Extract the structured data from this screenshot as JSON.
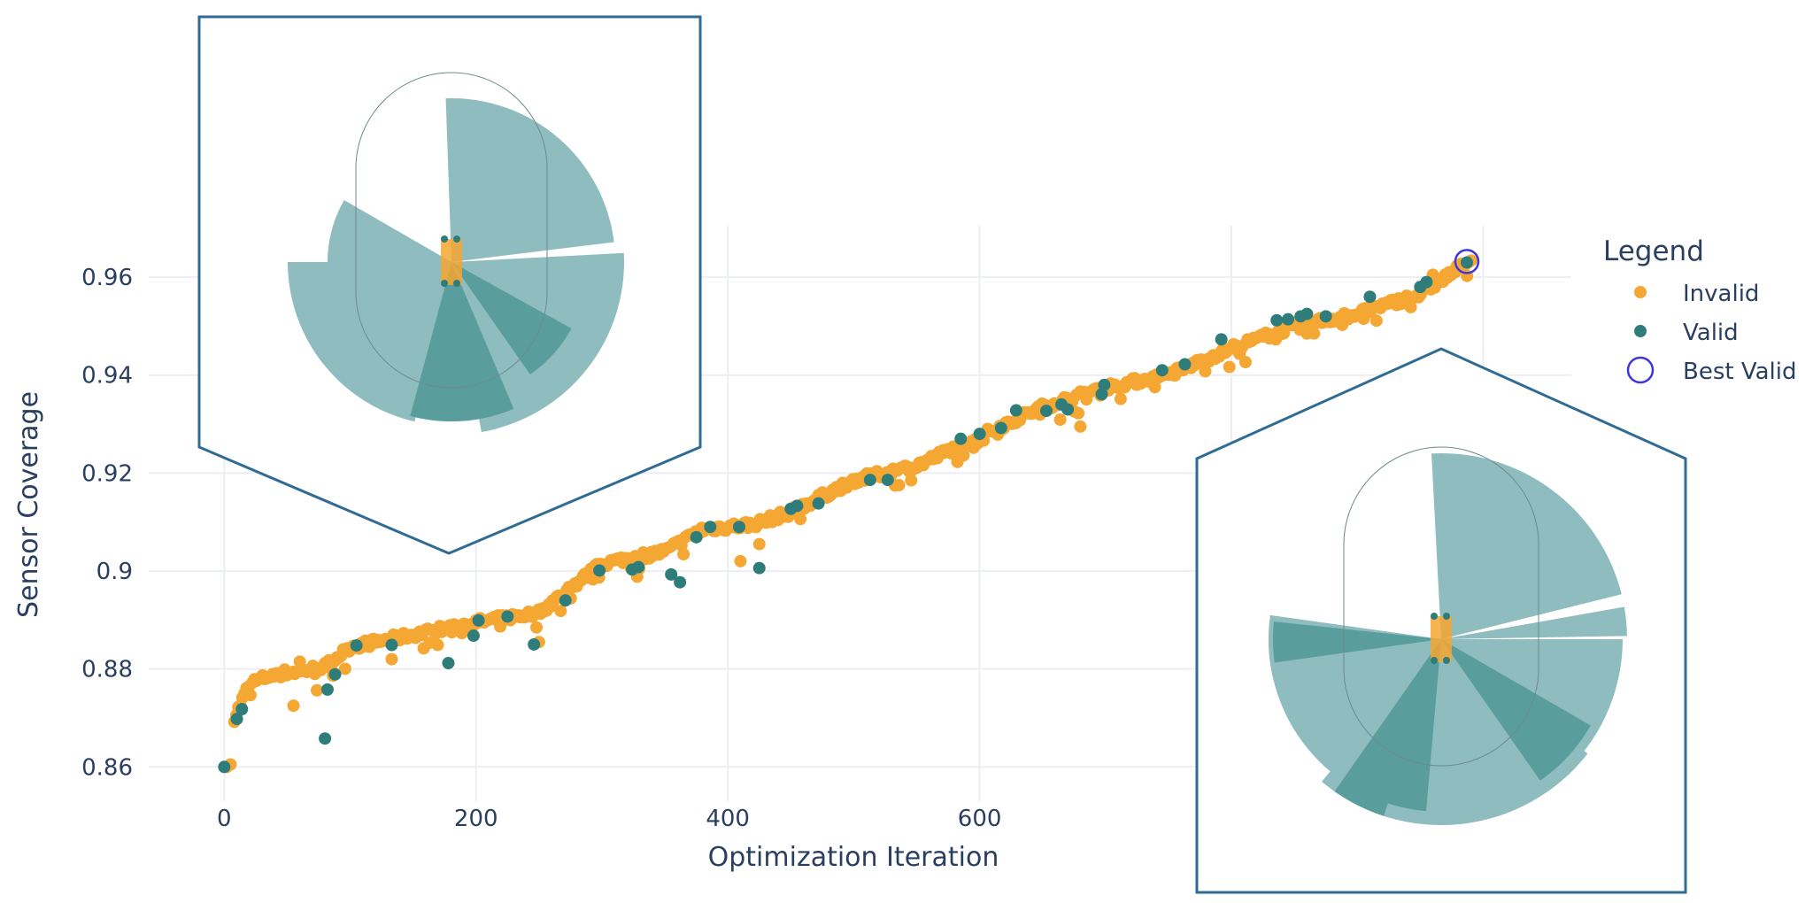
{
  "chart_data": {
    "type": "scatter",
    "xlabel": "Optimization Iteration",
    "ylabel": "Sensor Coverage",
    "xlim": [
      -60,
      1070
    ],
    "ylim": [
      0.853,
      0.9705
    ],
    "x_ticks": [
      0,
      200,
      400,
      600,
      800,
      1000
    ],
    "x_tick_labels": [
      "0",
      "200",
      "400",
      "600",
      "",
      ""
    ],
    "y_ticks": [
      0.86,
      0.88,
      0.9,
      0.92,
      0.94,
      0.96
    ],
    "y_tick_labels": [
      "0.86",
      "0.88",
      "0.9",
      "0.92",
      "0.94",
      "0.96"
    ],
    "grid": true,
    "legend": {
      "title": "Legend",
      "placement": "right",
      "entries": [
        {
          "name": "Invalid",
          "color": "#F5A733",
          "marker": "dot"
        },
        {
          "name": "Valid",
          "color": "#2E7D7A",
          "marker": "dot"
        },
        {
          "name": "Best Valid",
          "color": "#3F35E0",
          "marker": "open-circle"
        }
      ]
    },
    "series": [
      {
        "name": "Invalid",
        "color": "#F5A733",
        "trend": [
          [
            0,
            0.86
          ],
          [
            8,
            0.87
          ],
          [
            20,
            0.877
          ],
          [
            40,
            0.879
          ],
          [
            60,
            0.8795
          ],
          [
            80,
            0.8805
          ],
          [
            100,
            0.8845
          ],
          [
            150,
            0.887
          ],
          [
            200,
            0.8895
          ],
          [
            250,
            0.8915
          ],
          [
            300,
            0.9015
          ],
          [
            350,
            0.904
          ],
          [
            380,
            0.9085
          ],
          [
            420,
            0.9095
          ],
          [
            450,
            0.912
          ],
          [
            500,
            0.9185
          ],
          [
            550,
            0.9215
          ],
          [
            600,
            0.9275
          ],
          [
            650,
            0.9335
          ],
          [
            700,
            0.9375
          ],
          [
            750,
            0.94
          ],
          [
            800,
            0.9455
          ],
          [
            850,
            0.95
          ],
          [
            900,
            0.9525
          ],
          [
            950,
            0.9565
          ],
          [
            990,
            0.9635
          ]
        ],
        "outliers": [
          [
            2,
            0.86
          ],
          [
            5,
            0.8605
          ],
          [
            55,
            0.8725
          ],
          [
            60,
            0.8815
          ],
          [
            133,
            0.882
          ],
          [
            250,
            0.8855
          ],
          [
            410,
            0.902
          ],
          [
            425,
            0.9055
          ],
          [
            680,
            0.9295
          ],
          [
            830,
            0.9475
          ],
          [
            860,
            0.9485
          ],
          [
            905,
            0.9515
          ],
          [
            960,
            0.9605
          ]
        ]
      },
      {
        "name": "Valid",
        "color": "#2E7D7A",
        "points": [
          [
            0,
            0.86
          ],
          [
            10,
            0.8698
          ],
          [
            14,
            0.8718
          ],
          [
            80,
            0.8658
          ],
          [
            82,
            0.8758
          ],
          [
            88,
            0.8789
          ],
          [
            105,
            0.8848
          ],
          [
            133,
            0.8849
          ],
          [
            178,
            0.8812
          ],
          [
            198,
            0.8868
          ],
          [
            202,
            0.8899
          ],
          [
            225,
            0.8907
          ],
          [
            246,
            0.885
          ],
          [
            271,
            0.894
          ],
          [
            298,
            0.9001
          ],
          [
            324,
            0.9003
          ],
          [
            329,
            0.9008
          ],
          [
            355,
            0.8993
          ],
          [
            362,
            0.8977
          ],
          [
            375,
            0.9069
          ],
          [
            386,
            0.909
          ],
          [
            409,
            0.909
          ],
          [
            425,
            0.9006
          ],
          [
            450,
            0.9127
          ],
          [
            455,
            0.9133
          ],
          [
            472,
            0.9138
          ],
          [
            513,
            0.9186
          ],
          [
            527,
            0.9186
          ],
          [
            585,
            0.927
          ],
          [
            600,
            0.928
          ],
          [
            617,
            0.9292
          ],
          [
            629,
            0.9328
          ],
          [
            653,
            0.9327
          ],
          [
            665,
            0.934
          ],
          [
            670,
            0.933
          ],
          [
            697,
            0.9361
          ],
          [
            699,
            0.938
          ],
          [
            745,
            0.941
          ],
          [
            763,
            0.9422
          ],
          [
            792,
            0.9473
          ],
          [
            836,
            0.9512
          ],
          [
            845,
            0.9514
          ],
          [
            855,
            0.952
          ],
          [
            860,
            0.9525
          ],
          [
            875,
            0.952
          ],
          [
            910,
            0.956
          ],
          [
            950,
            0.958
          ],
          [
            955,
            0.959
          ],
          [
            987,
            0.963
          ]
        ]
      },
      {
        "name": "Best Valid",
        "color": "#3F35E0",
        "points": [
          [
            987,
            0.9632
          ]
        ]
      }
    ]
  },
  "insets": [
    {
      "description_key": "left",
      "wedges": [
        [
          -92,
          -7,
          185
        ],
        [
          -3,
          80,
          195
        ],
        [
          103,
          180,
          185
        ],
        [
          170,
          210,
          140
        ],
        [
          52,
          130,
          180
        ],
        [
          38,
          62,
          190
        ]
      ],
      "dark_wedges": [
        [
          67,
          105,
          180
        ],
        [
          29,
          55,
          155
        ]
      ]
    },
    {
      "description_key": "right",
      "wedges": [
        [
          -93,
          -14,
          210
        ],
        [
          -10,
          -1,
          210
        ],
        [
          0,
          90,
          205
        ],
        [
          95,
          180,
          195
        ],
        [
          168,
          188,
          195
        ],
        [
          38,
          130,
          210
        ],
        [
          25,
          60,
          205
        ]
      ],
      "dark_wedges": [
        [
          108,
          125,
          210
        ],
        [
          95,
          112,
          195
        ],
        [
          30,
          55,
          195
        ],
        [
          172,
          186,
          190
        ]
      ]
    }
  ],
  "colors": {
    "invalid": "#F5A733",
    "valid": "#2E7D7A",
    "best": "#3F35E0",
    "wedge": "#8FBCBE",
    "wedge_dark": "#5A9D9D",
    "frame": "#2F6B93",
    "grid": "#EBEEF3",
    "text": "#2A3F5F"
  }
}
